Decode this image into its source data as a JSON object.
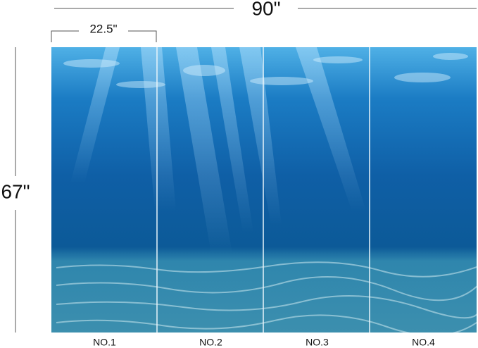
{
  "dimensions": {
    "width": "90\"",
    "height": "67\"",
    "panel_width": "22.5\""
  },
  "panels": [
    "NO.1",
    "NO.2",
    "NO.3",
    "NO.4"
  ]
}
